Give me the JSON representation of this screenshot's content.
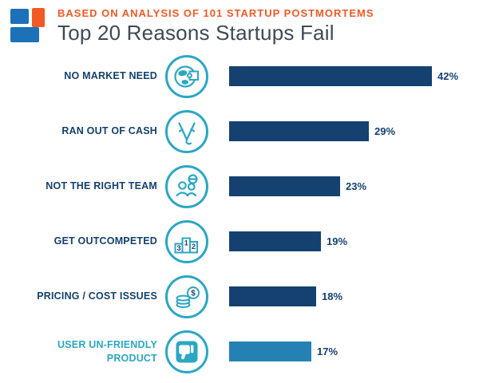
{
  "header": {
    "kicker": "BASED ON ANALYSIS OF 101 STARTUP POSTMORTEMS",
    "title": "Top 20 Reasons Startups Fail"
  },
  "colors": {
    "navy": "#14416F",
    "teal": "#2AA7C5",
    "orange": "#F15A24",
    "light_bar": "#2581B3",
    "title_text": "#3E4A57",
    "logo_blue": "#1D71B8"
  },
  "chart_data": {
    "type": "bar",
    "orientation": "horizontal",
    "title": "Top 20 Reasons Startups Fail",
    "subtitle": "BASED ON ANALYSIS OF 101 STARTUP POSTMORTEMS",
    "categories": [
      "NO MARKET NEED",
      "RAN OUT OF CASH",
      "NOT THE RIGHT TEAM",
      "GET OUTCOMPETED",
      "PRICING / COST ISSUES",
      "USER UN-FRIENDLY PRODUCT"
    ],
    "values": [
      42,
      29,
      23,
      19,
      18,
      17
    ],
    "unit": "%",
    "xlim": [
      0,
      45
    ],
    "grid": false,
    "legend": false,
    "bar_colors": [
      "#14416F",
      "#14416F",
      "#14416F",
      "#14416F",
      "#14416F",
      "#2581B3"
    ],
    "label_colors": [
      "#14416F",
      "#14416F",
      "#14416F",
      "#14416F",
      "#14416F",
      "#2AA7C5"
    ]
  },
  "rows": [
    {
      "lines": [
        "NO MARKET NEED"
      ],
      "pct": "42%",
      "icon": "globe-puzzle-icon"
    },
    {
      "lines": [
        "RAN OUT OF CASH"
      ],
      "pct": "29%",
      "icon": "empty-pocket-icon"
    },
    {
      "lines": [
        "NOT THE RIGHT TEAM"
      ],
      "pct": "23%",
      "icon": "team-icon"
    },
    {
      "lines": [
        "GET OUTCOMPETED"
      ],
      "pct": "19%",
      "icon": "podium-icon"
    },
    {
      "lines": [
        "PRICING / COST ISSUES"
      ],
      "pct": "18%",
      "icon": "coins-icon"
    },
    {
      "lines": [
        "USER UN-FRIENDLY",
        "PRODUCT"
      ],
      "pct": "17%",
      "icon": "thumbs-down-icon"
    }
  ],
  "podium_numbers": [
    "3",
    "1",
    "2"
  ],
  "dollar_sign": "$"
}
